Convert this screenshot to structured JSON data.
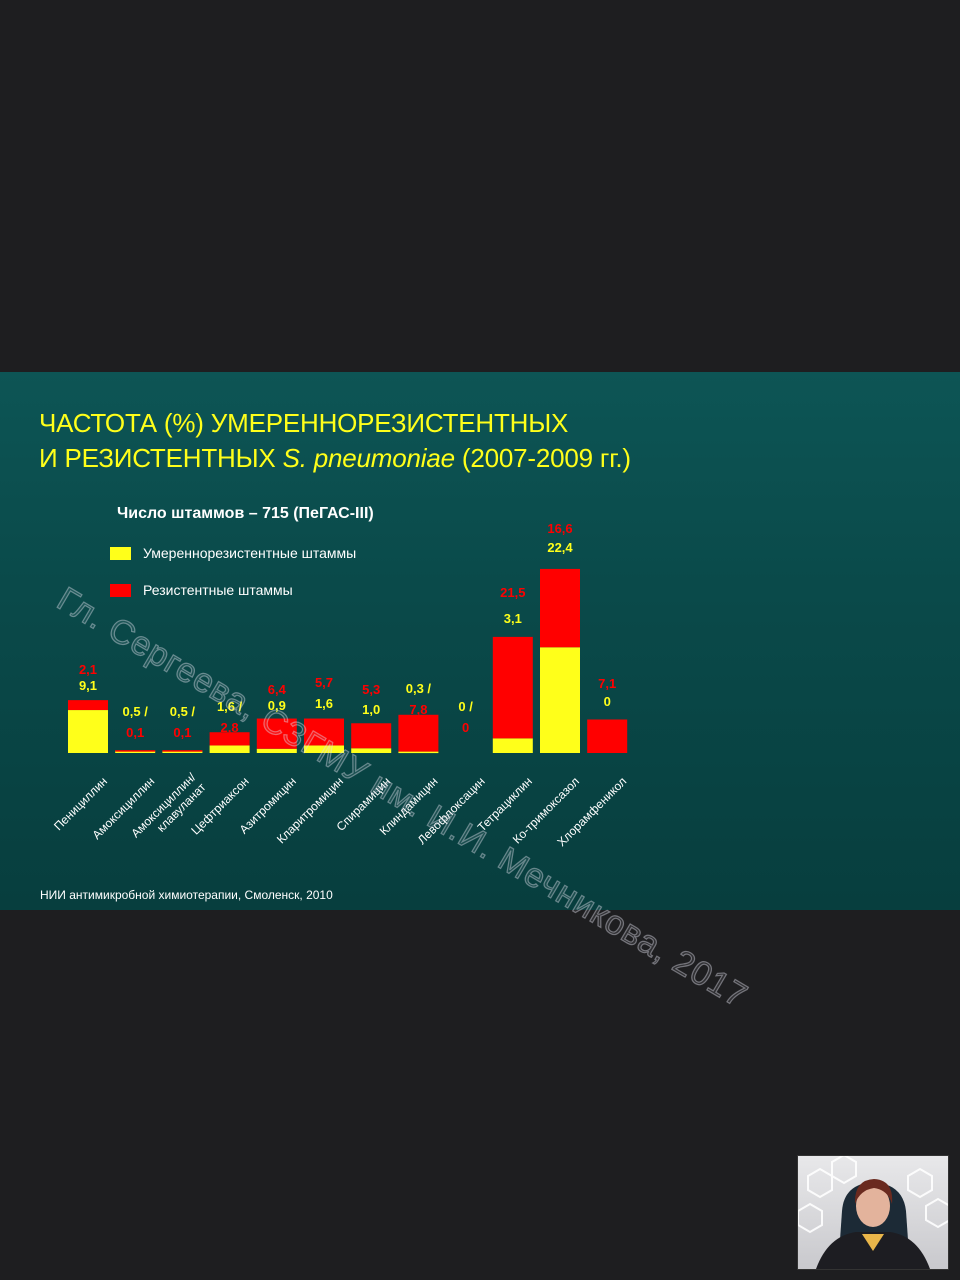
{
  "slide": {
    "title_line1": "ЧАСТОТА (%) УМЕРЕННОРЕЗИСТЕНТНЫХ",
    "title_line2_pre": "И РЕЗИСТЕНТНЫХ ",
    "title_line2_italic": "S. pneumoniae",
    "title_line2_post": " (2007-2009 гг.)",
    "subtitle": "Число штаммов – 715 (ПеГАС-III)",
    "legend": [
      {
        "label": "Умереннорезистентные штаммы",
        "color": "#ffff1a"
      },
      {
        "label": "Резистентные штаммы",
        "color": "#ff0000"
      }
    ],
    "footnote": "НИИ антимикробной химиотерапии, Смоленск, 2010",
    "watermark": "Гл. Сергеева, СЗГМУ им. И.И. Мечникова, 2017"
  },
  "chart_data": {
    "type": "bar",
    "stacked": true,
    "categories": [
      "Пенициллин",
      "Амоксициллин",
      "Амоксициллин/ клавуланат",
      "Цефтриаксон",
      "Азитромицин",
      "Кларитромицин",
      "Спирамицин",
      "Клиндамицин",
      "Левофлоксацин",
      "Тетрациклин",
      "Ко-тримоксазол",
      "Хлорамфеникол"
    ],
    "series": [
      {
        "name": "Умереннорезистентные штаммы",
        "color": "#ffff1a",
        "values": [
          9.1,
          0.5,
          0.5,
          1.6,
          0.9,
          1.6,
          1.0,
          0.3,
          0,
          3.1,
          22.4,
          0
        ]
      },
      {
        "name": "Резистентные штаммы",
        "color": "#ff0000",
        "values": [
          2.1,
          0.1,
          0.1,
          2.8,
          6.4,
          5.7,
          5.3,
          7.8,
          0,
          21.5,
          16.6,
          7.1
        ]
      }
    ],
    "labels": [
      {
        "top": "2,1",
        "bottom": "9,1",
        "inline": false
      },
      {
        "top": "0,5 /",
        "bottom": "0,1",
        "inline": true
      },
      {
        "top": "0,5 /",
        "bottom": "0,1",
        "inline": true
      },
      {
        "top": "1,6 /",
        "bottom": "2,8",
        "inline": true
      },
      {
        "top": "6,4",
        "bottom": "0,9",
        "inline": false
      },
      {
        "top": "5,7",
        "bottom": "1,6",
        "inline": false
      },
      {
        "top": "5,3",
        "bottom": "1,0",
        "inline": false
      },
      {
        "top": "0,3 /",
        "bottom": "7,8",
        "inline": true
      },
      {
        "top": "0 /",
        "bottom": "0",
        "inline": true
      },
      {
        "top": "21,5",
        "bottom": "3,1",
        "inline": false
      },
      {
        "top": "16,6",
        "bottom": "22,4",
        "inline": false
      },
      {
        "top": "7,1",
        "bottom": "0",
        "inline": false
      }
    ],
    "grid": false,
    "legend_position": "top-left"
  }
}
